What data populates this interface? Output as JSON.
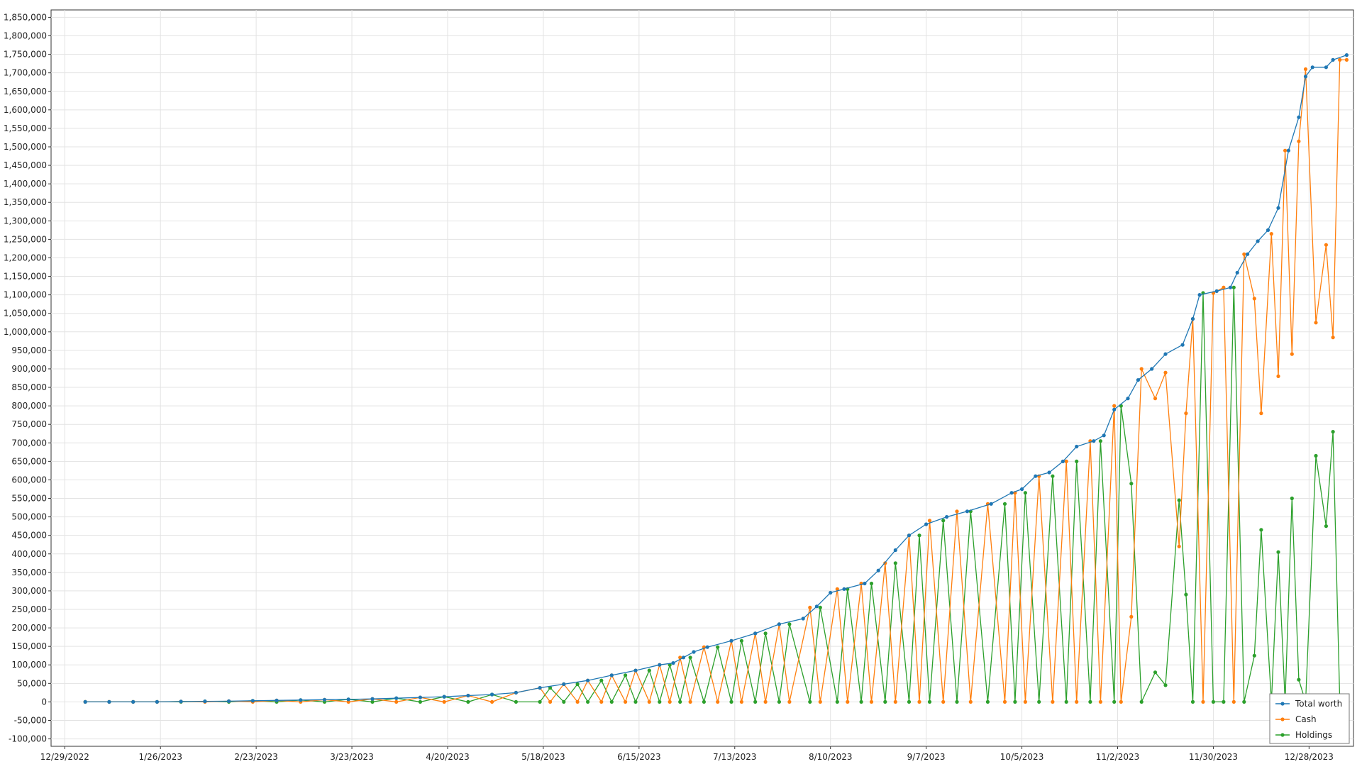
{
  "chart_data": {
    "type": "line",
    "title": "",
    "xlabel": "",
    "ylabel": "",
    "x_axis": {
      "type": "date",
      "range": [
        "2022-12-25",
        "2024-01-10"
      ],
      "ticks": [
        "12/29/2022",
        "1/26/2023",
        "2/23/2023",
        "3/23/2023",
        "4/20/2023",
        "5/18/2023",
        "6/15/2023",
        "7/13/2023",
        "8/10/2023",
        "9/7/2023",
        "10/5/2023",
        "11/2/2023",
        "11/30/2023",
        "12/28/2023"
      ]
    },
    "y_axis": {
      "range": [
        -120000,
        1870000
      ],
      "tick_step": 50000,
      "tick_labels": [
        "-100,000",
        "-50,000",
        "0",
        "50,000",
        "100,000",
        "150,000",
        "200,000",
        "250,000",
        "300,000",
        "350,000",
        "400,000",
        "450,000",
        "500,000",
        "550,000",
        "600,000",
        "650,000",
        "700,000",
        "750,000",
        "800,000",
        "850,000",
        "900,000",
        "950,000",
        "1,000,000",
        "1,050,000",
        "1,100,000",
        "1,150,000",
        "1,200,000",
        "1,250,000",
        "1,300,000",
        "1,350,000",
        "1,400,000",
        "1,450,000",
        "1,500,000",
        "1,550,000",
        "1,600,000",
        "1,650,000",
        "1,700,000",
        "1,750,000",
        "1,800,000",
        "1,850,000"
      ]
    },
    "grid": true,
    "legend": "bottom-right",
    "series": [
      {
        "name": "Total worth",
        "color": "#1f77b4",
        "points": [
          [
            "2023-01-04",
            0
          ],
          [
            "2023-01-11",
            0
          ],
          [
            "2023-01-18",
            0
          ],
          [
            "2023-01-25",
            0
          ],
          [
            "2023-02-01",
            1000
          ],
          [
            "2023-02-08",
            1500
          ],
          [
            "2023-02-15",
            2000
          ],
          [
            "2023-02-22",
            3000
          ],
          [
            "2023-03-01",
            4000
          ],
          [
            "2023-03-08",
            5000
          ],
          [
            "2023-03-15",
            6000
          ],
          [
            "2023-03-22",
            7000
          ],
          [
            "2023-03-29",
            8000
          ],
          [
            "2023-04-05",
            10000
          ],
          [
            "2023-04-12",
            12000
          ],
          [
            "2023-04-19",
            14000
          ],
          [
            "2023-04-26",
            17000
          ],
          [
            "2023-05-03",
            20000
          ],
          [
            "2023-05-10",
            25000
          ],
          [
            "2023-05-17",
            38000
          ],
          [
            "2023-05-24",
            48000
          ],
          [
            "2023-05-31",
            58000
          ],
          [
            "2023-06-07",
            72000
          ],
          [
            "2023-06-14",
            85000
          ],
          [
            "2023-06-21",
            100000
          ],
          [
            "2023-06-25",
            105000
          ],
          [
            "2023-06-28",
            120000
          ],
          [
            "2023-07-01",
            135000
          ],
          [
            "2023-07-05",
            148000
          ],
          [
            "2023-07-12",
            165000
          ],
          [
            "2023-07-19",
            185000
          ],
          [
            "2023-07-26",
            210000
          ],
          [
            "2023-08-02",
            225000
          ],
          [
            "2023-08-06",
            258000
          ],
          [
            "2023-08-10",
            295000
          ],
          [
            "2023-08-14",
            305000
          ],
          [
            "2023-08-20",
            320000
          ],
          [
            "2023-08-24",
            355000
          ],
          [
            "2023-08-29",
            410000
          ],
          [
            "2023-09-02",
            450000
          ],
          [
            "2023-09-07",
            480000
          ],
          [
            "2023-09-13",
            500000
          ],
          [
            "2023-09-19",
            515000
          ],
          [
            "2023-09-26",
            535000
          ],
          [
            "2023-10-02",
            565000
          ],
          [
            "2023-10-05",
            575000
          ],
          [
            "2023-10-09",
            610000
          ],
          [
            "2023-10-13",
            620000
          ],
          [
            "2023-10-17",
            650000
          ],
          [
            "2023-10-21",
            690000
          ],
          [
            "2023-10-26",
            705000
          ],
          [
            "2023-10-29",
            720000
          ],
          [
            "2023-11-01",
            790000
          ],
          [
            "2023-11-05",
            820000
          ],
          [
            "2023-11-08",
            870000
          ],
          [
            "2023-11-12",
            900000
          ],
          [
            "2023-11-16",
            940000
          ],
          [
            "2023-11-21",
            965000
          ],
          [
            "2023-11-24",
            1035000
          ],
          [
            "2023-11-26",
            1100000
          ],
          [
            "2023-12-01",
            1110000
          ],
          [
            "2023-12-05",
            1120000
          ],
          [
            "2023-12-07",
            1160000
          ],
          [
            "2023-12-10",
            1210000
          ],
          [
            "2023-12-13",
            1245000
          ],
          [
            "2023-12-16",
            1275000
          ],
          [
            "2023-12-19",
            1335000
          ],
          [
            "2023-12-22",
            1490000
          ],
          [
            "2023-12-25",
            1580000
          ],
          [
            "2023-12-27",
            1690000
          ],
          [
            "2023-12-29",
            1715000
          ],
          [
            "2024-01-02",
            1715000
          ],
          [
            "2024-01-04",
            1735000
          ],
          [
            "2024-01-08",
            1748000
          ]
        ]
      },
      {
        "name": "Cash",
        "color": "#ff7f0e",
        "points": [
          [
            "2023-01-04",
            0
          ],
          [
            "2023-01-11",
            0
          ],
          [
            "2023-01-18",
            0
          ],
          [
            "2023-01-25",
            0
          ],
          [
            "2023-02-01",
            1000
          ],
          [
            "2023-02-08",
            0
          ],
          [
            "2023-02-15",
            2000
          ],
          [
            "2023-02-22",
            0
          ],
          [
            "2023-03-01",
            4000
          ],
          [
            "2023-03-08",
            0
          ],
          [
            "2023-03-15",
            6000
          ],
          [
            "2023-03-22",
            0
          ],
          [
            "2023-03-29",
            8000
          ],
          [
            "2023-04-05",
            0
          ],
          [
            "2023-04-12",
            12000
          ],
          [
            "2023-04-19",
            0
          ],
          [
            "2023-04-26",
            17000
          ],
          [
            "2023-05-03",
            0
          ],
          [
            "2023-05-10",
            25000
          ],
          [
            "2023-05-17",
            38000
          ],
          [
            "2023-05-20",
            0
          ],
          [
            "2023-05-24",
            48000
          ],
          [
            "2023-05-28",
            0
          ],
          [
            "2023-05-31",
            58000
          ],
          [
            "2023-06-04",
            0
          ],
          [
            "2023-06-07",
            72000
          ],
          [
            "2023-06-11",
            0
          ],
          [
            "2023-06-14",
            85000
          ],
          [
            "2023-06-18",
            0
          ],
          [
            "2023-06-21",
            100000
          ],
          [
            "2023-06-24",
            0
          ],
          [
            "2023-06-27",
            120000
          ],
          [
            "2023-06-30",
            0
          ],
          [
            "2023-07-04",
            148000
          ],
          [
            "2023-07-08",
            0
          ],
          [
            "2023-07-12",
            165000
          ],
          [
            "2023-07-15",
            0
          ],
          [
            "2023-07-19",
            185000
          ],
          [
            "2023-07-22",
            0
          ],
          [
            "2023-07-26",
            210000
          ],
          [
            "2023-07-29",
            0
          ],
          [
            "2023-08-04",
            255000
          ],
          [
            "2023-08-07",
            0
          ],
          [
            "2023-08-12",
            305000
          ],
          [
            "2023-08-15",
            0
          ],
          [
            "2023-08-19",
            320000
          ],
          [
            "2023-08-22",
            0
          ],
          [
            "2023-08-26",
            375000
          ],
          [
            "2023-08-29",
            0
          ],
          [
            "2023-09-02",
            450000
          ],
          [
            "2023-09-05",
            0
          ],
          [
            "2023-09-08",
            490000
          ],
          [
            "2023-09-12",
            0
          ],
          [
            "2023-09-16",
            515000
          ],
          [
            "2023-09-20",
            0
          ],
          [
            "2023-09-25",
            535000
          ],
          [
            "2023-09-30",
            0
          ],
          [
            "2023-10-03",
            565000
          ],
          [
            "2023-10-06",
            0
          ],
          [
            "2023-10-10",
            610000
          ],
          [
            "2023-10-14",
            0
          ],
          [
            "2023-10-18",
            650000
          ],
          [
            "2023-10-21",
            0
          ],
          [
            "2023-10-25",
            705000
          ],
          [
            "2023-10-28",
            0
          ],
          [
            "2023-11-01",
            800000
          ],
          [
            "2023-11-03",
            0
          ],
          [
            "2023-11-06",
            230000
          ],
          [
            "2023-11-09",
            900000
          ],
          [
            "2023-11-13",
            820000
          ],
          [
            "2023-11-16",
            890000
          ],
          [
            "2023-11-20",
            420000
          ],
          [
            "2023-11-22",
            780000
          ],
          [
            "2023-11-24",
            1035000
          ],
          [
            "2023-11-27",
            0
          ],
          [
            "2023-11-30",
            1105000
          ],
          [
            "2023-12-03",
            1120000
          ],
          [
            "2023-12-06",
            0
          ],
          [
            "2023-12-09",
            1210000
          ],
          [
            "2023-12-12",
            1090000
          ],
          [
            "2023-12-14",
            780000
          ],
          [
            "2023-12-17",
            1265000
          ],
          [
            "2023-12-19",
            880000
          ],
          [
            "2023-12-21",
            1490000
          ],
          [
            "2023-12-23",
            940000
          ],
          [
            "2023-12-25",
            1515000
          ],
          [
            "2023-12-27",
            1710000
          ],
          [
            "2023-12-30",
            1025000
          ],
          [
            "2024-01-02",
            1235000
          ],
          [
            "2024-01-04",
            985000
          ],
          [
            "2024-01-06",
            1735000
          ],
          [
            "2024-01-08",
            1735000
          ]
        ]
      },
      {
        "name": "Holdings",
        "color": "#2ca02c",
        "points": [
          [
            "2023-01-04",
            0
          ],
          [
            "2023-01-11",
            0
          ],
          [
            "2023-01-18",
            0
          ],
          [
            "2023-01-25",
            0
          ],
          [
            "2023-02-01",
            0
          ],
          [
            "2023-02-08",
            1500
          ],
          [
            "2023-02-15",
            0
          ],
          [
            "2023-02-22",
            3000
          ],
          [
            "2023-03-01",
            0
          ],
          [
            "2023-03-08",
            5000
          ],
          [
            "2023-03-15",
            0
          ],
          [
            "2023-03-22",
            7000
          ],
          [
            "2023-03-29",
            0
          ],
          [
            "2023-04-05",
            10000
          ],
          [
            "2023-04-12",
            0
          ],
          [
            "2023-04-19",
            14000
          ],
          [
            "2023-04-26",
            0
          ],
          [
            "2023-05-03",
            20000
          ],
          [
            "2023-05-10",
            0
          ],
          [
            "2023-05-17",
            0
          ],
          [
            "2023-05-20",
            38000
          ],
          [
            "2023-05-24",
            0
          ],
          [
            "2023-05-28",
            48000
          ],
          [
            "2023-05-31",
            0
          ],
          [
            "2023-06-04",
            58000
          ],
          [
            "2023-06-07",
            0
          ],
          [
            "2023-06-11",
            72000
          ],
          [
            "2023-06-14",
            0
          ],
          [
            "2023-06-18",
            85000
          ],
          [
            "2023-06-21",
            0
          ],
          [
            "2023-06-24",
            100000
          ],
          [
            "2023-06-27",
            0
          ],
          [
            "2023-06-30",
            120000
          ],
          [
            "2023-07-04",
            0
          ],
          [
            "2023-07-08",
            148000
          ],
          [
            "2023-07-12",
            0
          ],
          [
            "2023-07-15",
            165000
          ],
          [
            "2023-07-19",
            0
          ],
          [
            "2023-07-22",
            185000
          ],
          [
            "2023-07-26",
            0
          ],
          [
            "2023-07-29",
            210000
          ],
          [
            "2023-08-04",
            0
          ],
          [
            "2023-08-07",
            255000
          ],
          [
            "2023-08-12",
            0
          ],
          [
            "2023-08-15",
            305000
          ],
          [
            "2023-08-19",
            0
          ],
          [
            "2023-08-22",
            320000
          ],
          [
            "2023-08-26",
            0
          ],
          [
            "2023-08-29",
            375000
          ],
          [
            "2023-09-02",
            0
          ],
          [
            "2023-09-05",
            450000
          ],
          [
            "2023-09-08",
            0
          ],
          [
            "2023-09-12",
            490000
          ],
          [
            "2023-09-16",
            0
          ],
          [
            "2023-09-20",
            515000
          ],
          [
            "2023-09-25",
            0
          ],
          [
            "2023-09-30",
            535000
          ],
          [
            "2023-10-03",
            0
          ],
          [
            "2023-10-06",
            565000
          ],
          [
            "2023-10-10",
            0
          ],
          [
            "2023-10-14",
            610000
          ],
          [
            "2023-10-18",
            0
          ],
          [
            "2023-10-21",
            650000
          ],
          [
            "2023-10-25",
            0
          ],
          [
            "2023-10-28",
            705000
          ],
          [
            "2023-11-01",
            0
          ],
          [
            "2023-11-03",
            800000
          ],
          [
            "2023-11-06",
            590000
          ],
          [
            "2023-11-09",
            0
          ],
          [
            "2023-11-13",
            80000
          ],
          [
            "2023-11-16",
            45000
          ],
          [
            "2023-11-20",
            545000
          ],
          [
            "2023-11-22",
            290000
          ],
          [
            "2023-11-24",
            0
          ],
          [
            "2023-11-27",
            1105000
          ],
          [
            "2023-11-30",
            0
          ],
          [
            "2023-12-03",
            0
          ],
          [
            "2023-12-06",
            1120000
          ],
          [
            "2023-12-09",
            0
          ],
          [
            "2023-12-12",
            125000
          ],
          [
            "2023-12-14",
            465000
          ],
          [
            "2023-12-17",
            0
          ],
          [
            "2023-12-19",
            405000
          ],
          [
            "2023-12-21",
            0
          ],
          [
            "2023-12-23",
            550000
          ],
          [
            "2023-12-25",
            60000
          ],
          [
            "2023-12-27",
            0
          ],
          [
            "2023-12-30",
            665000
          ],
          [
            "2024-01-02",
            475000
          ],
          [
            "2024-01-04",
            730000
          ],
          [
            "2024-01-06",
            0
          ],
          [
            "2024-01-08",
            0
          ]
        ]
      }
    ]
  }
}
